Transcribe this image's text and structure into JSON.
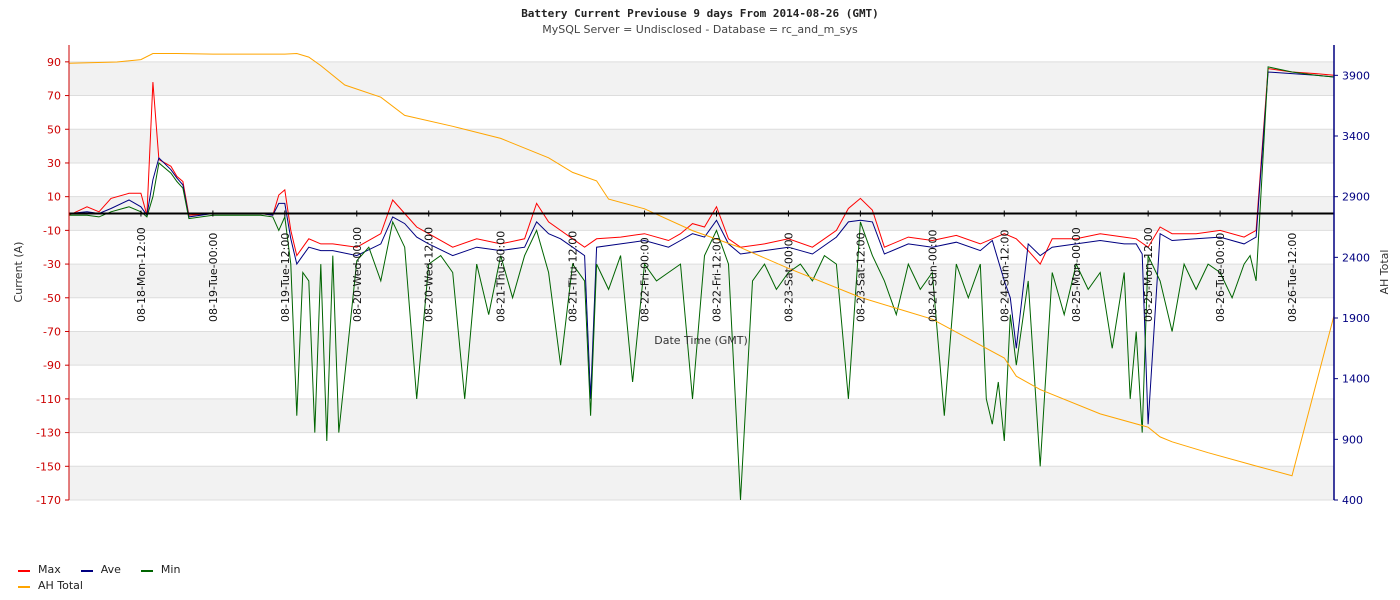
{
  "chart_data": {
    "type": "line",
    "title": "Battery Current Previouse 9 days From 2014-08-26 (GMT)",
    "subtitle": "MySQL Server = Undisclosed - Database = rc_and_m_sys",
    "xlabel": "Date Time (GMT)",
    "ylabel": "Current (A)",
    "y2label": "AH Total",
    "ylim": [
      -170,
      100
    ],
    "y2lim": [
      400,
      4150
    ],
    "yticks": [
      "90",
      "70",
      "50",
      "30",
      "10",
      "-10",
      "-30",
      "-50",
      "-70",
      "-90",
      "-110",
      "-130",
      "-150",
      "-170"
    ],
    "y2ticks": [
      "3900",
      "3400",
      "2900",
      "2400",
      "1900",
      "1400",
      "900",
      "400"
    ],
    "xticks": [
      "08-18-Mon-12:00",
      "08-19-Tue-00:00",
      "08-19-Tue-12:00",
      "08-20-Wed-00:00",
      "08-20-Wed-12:00",
      "08-21-Thu-00:00",
      "08-21-Thu-12:00",
      "08-22-Fri-00:00",
      "08-22-Fri-12:00",
      "08-23-Sat-00:00",
      "08-23-Sat-12:00",
      "08-24-Sun-00:00",
      "08-24-Sun-12:00",
      "08-25-Mon-00:00",
      "08-25-Mon-12:00",
      "08-26-Tue-00:00",
      "08-26-Tue-12:00"
    ],
    "xtick_hours": [
      36,
      48,
      60,
      72,
      84,
      96,
      108,
      120,
      132,
      144,
      156,
      168,
      180,
      192,
      204,
      216,
      228
    ],
    "x_hours_range": [
      24,
      235
    ],
    "grid": true,
    "legend_position": "bottom-left",
    "colors": {
      "Max": "#ff0000",
      "Ave": "#000080",
      "Min": "#006400",
      "AH Total": "#ffa500",
      "left_axis": "#cc0000",
      "right_axis": "#000080"
    },
    "series": [
      {
        "name": "Max",
        "axis": "left",
        "x": [
          24,
          27,
          29,
          31,
          34,
          36,
          37,
          38,
          39,
          41,
          42,
          43,
          44,
          48,
          52,
          56,
          58,
          59,
          60,
          61,
          62,
          63,
          64,
          66,
          68,
          72,
          76,
          78,
          80,
          82,
          84,
          88,
          92,
          96,
          100,
          102,
          104,
          106,
          108,
          110,
          112,
          116,
          120,
          124,
          126,
          128,
          130,
          132,
          134,
          136,
          140,
          144,
          148,
          152,
          154,
          156,
          158,
          160,
          164,
          168,
          172,
          176,
          180,
          182,
          184,
          186,
          188,
          192,
          196,
          200,
          202,
          204,
          206,
          208,
          212,
          216,
          220,
          221,
          222,
          224,
          228,
          232,
          235
        ],
        "y": [
          -1,
          4,
          1,
          9,
          12,
          12,
          -1,
          78,
          32,
          28,
          22,
          19,
          -1,
          0,
          0,
          0,
          -1,
          11,
          14,
          -10,
          -25,
          -20,
          -15,
          -18,
          -18,
          -20,
          -12,
          8,
          0,
          -8,
          -12,
          -20,
          -15,
          -18,
          -15,
          6,
          -5,
          -10,
          -15,
          -20,
          -15,
          -14,
          -12,
          -16,
          -12,
          -6,
          -8,
          4,
          -15,
          -20,
          -18,
          -15,
          -20,
          -10,
          3,
          9,
          2,
          -20,
          -14,
          -16,
          -13,
          -18,
          -12,
          -15,
          -22,
          -30,
          -15,
          -15,
          -12,
          -14,
          -15,
          -20,
          -8,
          -12,
          -12,
          -10,
          -14,
          -12,
          -10,
          86,
          84,
          83,
          82
        ]
      },
      {
        "name": "Ave",
        "axis": "left",
        "x": [
          24,
          27,
          29,
          31,
          34,
          36,
          37,
          38,
          39,
          41,
          42,
          43,
          44,
          48,
          52,
          56,
          58,
          59,
          60,
          61,
          62,
          63,
          64,
          66,
          68,
          72,
          76,
          78,
          80,
          82,
          84,
          88,
          92,
          96,
          100,
          102,
          104,
          106,
          108,
          110,
          111,
          112,
          116,
          120,
          124,
          126,
          128,
          130,
          132,
          134,
          136,
          140,
          144,
          148,
          152,
          154,
          156,
          158,
          160,
          164,
          168,
          172,
          176,
          178,
          180,
          181,
          182,
          184,
          186,
          188,
          192,
          196,
          200,
          202,
          203,
          204,
          206,
          208,
          212,
          216,
          220,
          221,
          222,
          224,
          228,
          232,
          235
        ],
        "y": [
          0,
          1,
          0,
          3,
          8,
          4,
          -1,
          20,
          33,
          26,
          21,
          17,
          -2,
          0,
          0,
          0,
          -1,
          6,
          6,
          -15,
          -30,
          -25,
          -20,
          -22,
          -22,
          -25,
          -18,
          -2,
          -6,
          -14,
          -18,
          -25,
          -20,
          -22,
          -20,
          -5,
          -12,
          -15,
          -20,
          -25,
          -110,
          -20,
          -18,
          -16,
          -20,
          -16,
          -12,
          -14,
          -4,
          -18,
          -24,
          -22,
          -20,
          -24,
          -14,
          -5,
          -4,
          -5,
          -24,
          -18,
          -20,
          -17,
          -22,
          -16,
          -40,
          -50,
          -80,
          -18,
          -25,
          -20,
          -18,
          -16,
          -18,
          -18,
          -24,
          -125,
          -12,
          -16,
          -15,
          -14,
          -18,
          -16,
          -14,
          84,
          83,
          82,
          81
        ]
      },
      {
        "name": "Min",
        "axis": "left",
        "x": [
          24,
          27,
          29,
          31,
          34,
          36,
          37,
          38,
          39,
          41,
          42,
          43,
          44,
          48,
          52,
          56,
          58,
          59,
          60,
          61,
          62,
          63,
          64,
          65,
          66,
          67,
          68,
          69,
          72,
          74,
          76,
          78,
          80,
          82,
          84,
          86,
          88,
          90,
          92,
          94,
          96,
          98,
          100,
          102,
          104,
          106,
          108,
          110,
          111,
          112,
          114,
          116,
          118,
          120,
          122,
          124,
          126,
          128,
          130,
          132,
          134,
          136,
          138,
          140,
          142,
          144,
          146,
          148,
          150,
          152,
          154,
          156,
          158,
          160,
          162,
          164,
          166,
          168,
          170,
          172,
          174,
          176,
          177,
          178,
          179,
          180,
          181,
          182,
          184,
          186,
          188,
          190,
          192,
          194,
          196,
          198,
          200,
          201,
          202,
          203,
          204,
          206,
          208,
          210,
          212,
          214,
          216,
          218,
          220,
          221,
          222,
          224,
          228,
          232,
          235
        ],
        "y": [
          -1,
          -1,
          -2,
          1,
          4,
          1,
          -2,
          10,
          30,
          24,
          19,
          15,
          -3,
          -1,
          -1,
          -1,
          -2,
          -10,
          -2,
          -30,
          -120,
          -35,
          -40,
          -130,
          -30,
          -135,
          -25,
          -130,
          -28,
          -20,
          -40,
          -5,
          -20,
          -110,
          -30,
          -25,
          -35,
          -110,
          -30,
          -60,
          -25,
          -50,
          -25,
          -10,
          -35,
          -90,
          -30,
          -40,
          -120,
          -30,
          -45,
          -25,
          -100,
          -30,
          -40,
          -35,
          -30,
          -110,
          -25,
          -10,
          -30,
          -170,
          -40,
          -30,
          -45,
          -35,
          -30,
          -40,
          -25,
          -30,
          -110,
          -5,
          -25,
          -40,
          -60,
          -30,
          -45,
          -35,
          -120,
          -30,
          -50,
          -30,
          -110,
          -125,
          -100,
          -135,
          -60,
          -90,
          -40,
          -150,
          -35,
          -60,
          -30,
          -45,
          -35,
          -80,
          -35,
          -110,
          -70,
          -130,
          -25,
          -40,
          -70,
          -30,
          -45,
          -30,
          -35,
          -50,
          -30,
          -25,
          -40,
          87,
          84,
          82,
          81
        ]
      },
      {
        "name": "AH Total",
        "axis": "right",
        "x": [
          24,
          32,
          36,
          38,
          42,
          48,
          60,
          62,
          64,
          66,
          70,
          76,
          80,
          88,
          96,
          104,
          108,
          112,
          114,
          120,
          128,
          136,
          144,
          156,
          168,
          180,
          182,
          186,
          196,
          204,
          206,
          208,
          214,
          222,
          228,
          235
        ],
        "y": [
          4000,
          4010,
          4030,
          4080,
          4080,
          4075,
          4075,
          4080,
          4050,
          3980,
          3820,
          3720,
          3570,
          3480,
          3380,
          3220,
          3100,
          3030,
          2880,
          2800,
          2620,
          2480,
          2310,
          2070,
          1890,
          1570,
          1420,
          1310,
          1110,
          1000,
          920,
          880,
          790,
          680,
          600,
          1920
        ]
      }
    ]
  },
  "legend": {
    "items": [
      {
        "label": "Max",
        "color": "#ff0000"
      },
      {
        "label": "Ave",
        "color": "#000080"
      },
      {
        "label": "Min",
        "color": "#006400"
      },
      {
        "label": "AH Total",
        "color": "#ffa500"
      }
    ]
  }
}
